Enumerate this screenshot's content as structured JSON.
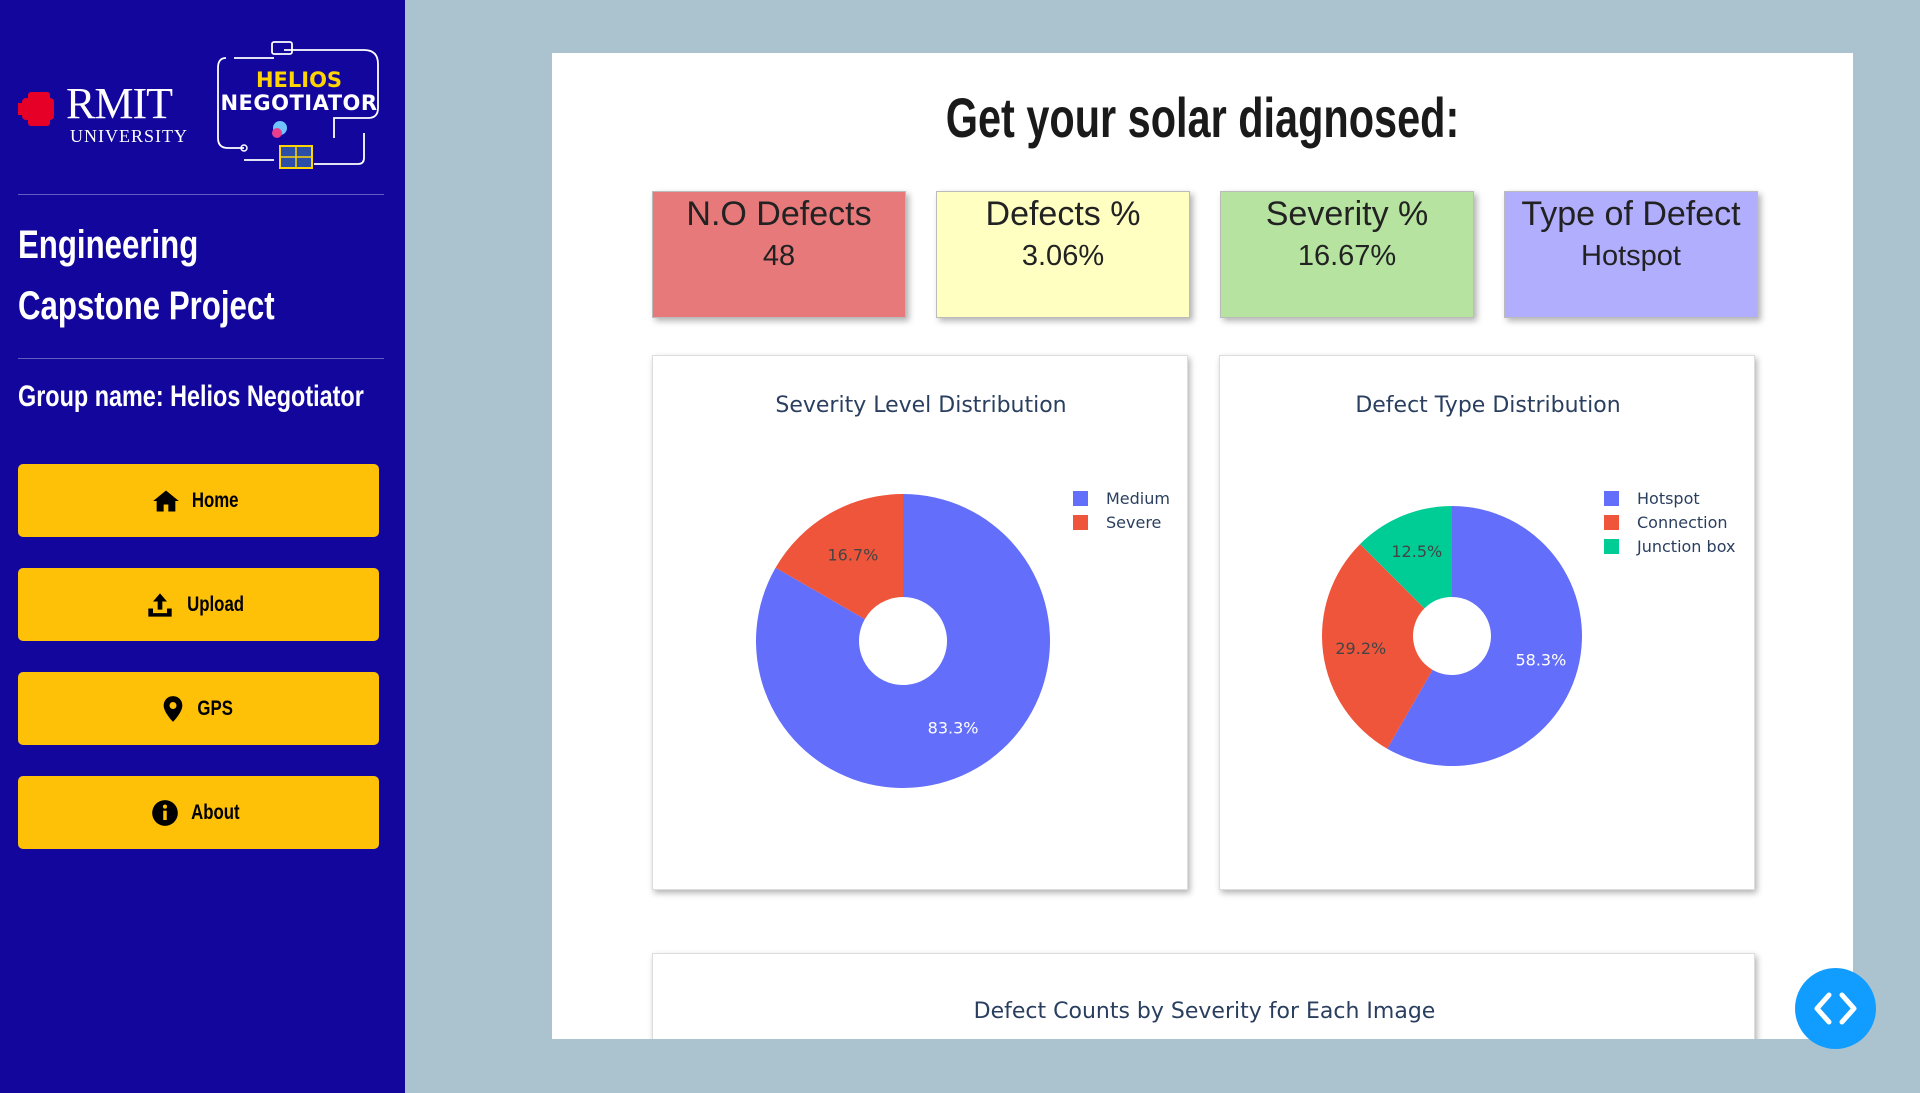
{
  "sidebar": {
    "logo_rmit": "RMIT",
    "logo_rmit_sub": "UNIVERSITY",
    "logo_helios_line1": "HELIOS",
    "logo_helios_line2": "NEGOTIATOR",
    "title": "Engineering Capstone Project",
    "group": "Group name: Helios Negotiator",
    "nav": [
      {
        "label": "Home",
        "icon": "home-icon"
      },
      {
        "label": "Upload",
        "icon": "upload-icon"
      },
      {
        "label": "GPS",
        "icon": "map-pin-icon"
      },
      {
        "label": "About",
        "icon": "info-icon"
      }
    ]
  },
  "main": {
    "title": "Get your solar diagnosed:",
    "cards": [
      {
        "title": "N.O Defects",
        "value": "48",
        "color": "#e8797a"
      },
      {
        "title": "Defects %",
        "value": "3.06%",
        "color": "#ffffc2"
      },
      {
        "title": "Severity %",
        "value": "16.67%",
        "color": "#b6e3a0"
      },
      {
        "title": "Type of Defect",
        "value": "Hotspot",
        "color": "#b1aefe"
      }
    ],
    "bottom_chart_title": "Defect Counts by Severity for Each Image"
  },
  "chart_data": [
    {
      "type": "pie",
      "title": "Severity Level Distribution",
      "hole": true,
      "categories": [
        "Medium",
        "Severe"
      ],
      "values": [
        83.3,
        16.7
      ],
      "labels": [
        "83.3%",
        "16.7%"
      ],
      "colors": [
        "#636efa",
        "#ef553b"
      ],
      "legend": "top-right"
    },
    {
      "type": "pie",
      "title": "Defect Type Distribution",
      "hole": true,
      "categories": [
        "Hotspot",
        "Connection",
        "Junction box"
      ],
      "values": [
        58.3,
        29.2,
        12.5
      ],
      "labels": [
        "58.3%",
        "29.2%",
        "12.5%"
      ],
      "colors": [
        "#636efa",
        "#ef553b",
        "#00cc96"
      ],
      "legend": "top-right"
    }
  ]
}
